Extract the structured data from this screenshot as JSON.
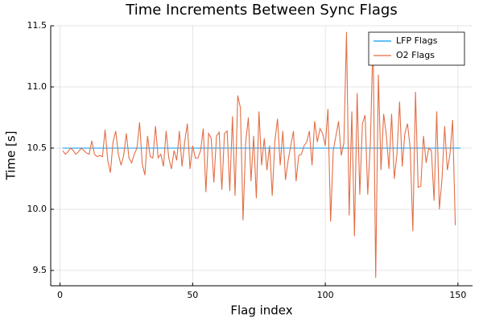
{
  "chart_data": {
    "type": "line",
    "title": "Time Increments Between Sync Flags",
    "x_label": "Flag index",
    "y_label": "Time [s]",
    "x": [
      1,
      2,
      3,
      4,
      5,
      6,
      7,
      8,
      9,
      10,
      11,
      12,
      13,
      14,
      15,
      16,
      17,
      18,
      19,
      20,
      21,
      22,
      23,
      24,
      25,
      26,
      27,
      28,
      29,
      30,
      31,
      32,
      33,
      34,
      35,
      36,
      37,
      38,
      39,
      40,
      41,
      42,
      43,
      44,
      45,
      46,
      47,
      48,
      49,
      50,
      51,
      52,
      53,
      54,
      55,
      56,
      57,
      58,
      59,
      60,
      61,
      62,
      63,
      64,
      65,
      66,
      67,
      68,
      69,
      70,
      71,
      72,
      73,
      74,
      75,
      76,
      77,
      78,
      79,
      80,
      81,
      82,
      83,
      84,
      85,
      86,
      87,
      88,
      89,
      90,
      91,
      92,
      93,
      94,
      95,
      96,
      97,
      98,
      99,
      100,
      101,
      102,
      103,
      104,
      105,
      106,
      107,
      108,
      109,
      110,
      111,
      112,
      113,
      114,
      115,
      116,
      117,
      118,
      119,
      120,
      121,
      122,
      123,
      124,
      125,
      126,
      127,
      128,
      129,
      130,
      131,
      132,
      133,
      134,
      135,
      136,
      137,
      138,
      139,
      140,
      141,
      142,
      143,
      144,
      145,
      146,
      147,
      148,
      149,
      150,
      151
    ],
    "series": [
      {
        "name": "LFP Flags",
        "color": "#009af9",
        "values": [
          10.5,
          10.5,
          10.5,
          10.5,
          10.5,
          10.5,
          10.5,
          10.5,
          10.5,
          10.5,
          10.5,
          10.5,
          10.5,
          10.5,
          10.5,
          10.5,
          10.5,
          10.5,
          10.5,
          10.5,
          10.5,
          10.5,
          10.5,
          10.5,
          10.5,
          10.5,
          10.5,
          10.5,
          10.5,
          10.5,
          10.5,
          10.5,
          10.5,
          10.5,
          10.5,
          10.5,
          10.5,
          10.5,
          10.5,
          10.5,
          10.5,
          10.5,
          10.5,
          10.5,
          10.5,
          10.5,
          10.5,
          10.5,
          10.5,
          10.5,
          10.5,
          10.5,
          10.5,
          10.5,
          10.5,
          10.5,
          10.5,
          10.5,
          10.5,
          10.5,
          10.5,
          10.5,
          10.5,
          10.5,
          10.5,
          10.5,
          10.5,
          10.5,
          10.5,
          10.5,
          10.5,
          10.5,
          10.5,
          10.5,
          10.5,
          10.5,
          10.5,
          10.5,
          10.5,
          10.5,
          10.5,
          10.5,
          10.5,
          10.5,
          10.5,
          10.5,
          10.5,
          10.5,
          10.5,
          10.5,
          10.5,
          10.5,
          10.5,
          10.5,
          10.5,
          10.5,
          10.5,
          10.5,
          10.5,
          10.5,
          10.5,
          10.5,
          10.5,
          10.5,
          10.5,
          10.5,
          10.5,
          10.5,
          10.5,
          10.5,
          10.5,
          10.5,
          10.5,
          10.5,
          10.5,
          10.5,
          10.5,
          10.5,
          10.5,
          10.5,
          10.5,
          10.5,
          10.5,
          10.5,
          10.5,
          10.5,
          10.5,
          10.5,
          10.5,
          10.5,
          10.5,
          10.5,
          10.5,
          10.5,
          10.5,
          10.5,
          10.5,
          10.5,
          10.5,
          10.5,
          10.5,
          10.5,
          10.5,
          10.5,
          10.5,
          10.5,
          10.5,
          10.5,
          10.5,
          10.5,
          10.5
        ]
      },
      {
        "name": "O2 Flags",
        "color": "#e26f46",
        "values": [
          10.48,
          10.45,
          10.47,
          10.5,
          10.48,
          10.45,
          10.47,
          10.5,
          10.48,
          10.46,
          10.45,
          10.56,
          10.45,
          10.43,
          10.44,
          10.43,
          10.65,
          10.4,
          10.3,
          10.55,
          10.64,
          10.45,
          10.36,
          10.44,
          10.62,
          10.42,
          10.38,
          10.45,
          10.5,
          10.71,
          10.37,
          10.28,
          10.6,
          10.43,
          10.42,
          10.68,
          10.42,
          10.45,
          10.35,
          10.64,
          10.42,
          10.33,
          10.48,
          10.4,
          10.64,
          10.35,
          10.55,
          10.7,
          10.33,
          10.52,
          10.42,
          10.42,
          10.48,
          10.66,
          10.14,
          10.62,
          10.58,
          10.22,
          10.6,
          10.63,
          10.16,
          10.62,
          10.64,
          10.15,
          10.76,
          10.11,
          10.93,
          10.83,
          9.91,
          10.55,
          10.75,
          10.23,
          10.6,
          10.09,
          10.8,
          10.36,
          10.58,
          10.32,
          10.52,
          10.11,
          10.56,
          10.74,
          10.36,
          10.64,
          10.24,
          10.4,
          10.52,
          10.64,
          10.23,
          10.44,
          10.45,
          10.52,
          10.55,
          10.64,
          10.36,
          10.72,
          10.55,
          10.66,
          10.62,
          10.52,
          10.82,
          9.9,
          10.48,
          10.6,
          10.72,
          10.44,
          10.54,
          11.45,
          9.95,
          10.8,
          9.78,
          10.95,
          10.12,
          10.7,
          10.77,
          10.12,
          10.55,
          11.4,
          9.44,
          11.1,
          10.32,
          10.78,
          10.61,
          10.33,
          10.78,
          10.25,
          10.45,
          10.88,
          10.35,
          10.62,
          10.7,
          10.5,
          9.82,
          10.96,
          10.18,
          10.19,
          10.6,
          10.38,
          10.5,
          10.48,
          10.07,
          10.8,
          10.0,
          10.25,
          10.68,
          10.32,
          10.45,
          10.73,
          9.87,
          null,
          null
        ]
      }
    ],
    "xlim": [
      -3.5,
      155.5
    ],
    "xticks": [
      0,
      50,
      100,
      150
    ],
    "ylim": [
      9.375,
      11.5
    ],
    "yticks": [
      9.5,
      {
        "value": 10,
        "label": "10.0"
      },
      10.5,
      {
        "value": 11,
        "label": "11.0"
      },
      11.5
    ],
    "grid": true,
    "legend": "top-right"
  }
}
